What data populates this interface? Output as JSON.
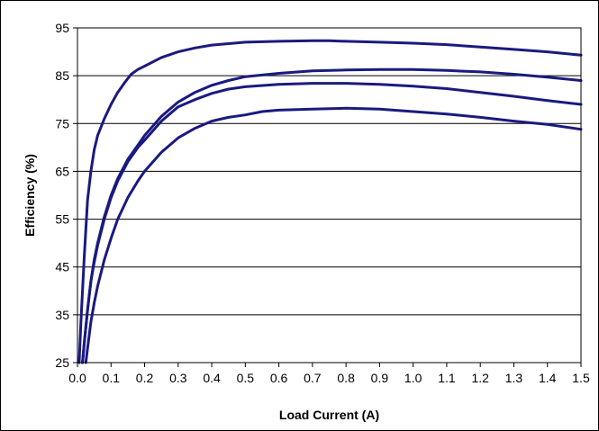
{
  "chart_data": {
    "type": "line",
    "title": "",
    "xlabel": "Load Current (A)",
    "ylabel": "Efficiency (%)",
    "xlim": [
      0,
      1.5
    ],
    "ylim": [
      25,
      95
    ],
    "x_ticks": [
      "0.0",
      "0.1",
      "0.2",
      "0.3",
      "0.4",
      "0.5",
      "0.6",
      "0.7",
      "0.8",
      "0.9",
      "1.0",
      "1.1",
      "1.2",
      "1.3",
      "1.4",
      "1.5"
    ],
    "y_ticks": [
      "25",
      "35",
      "45",
      "55",
      "65",
      "75",
      "85",
      "95"
    ],
    "grid": "horizontal",
    "legend": "none",
    "line_color": "#1a1a80",
    "series": [
      {
        "x": [
          0.005,
          0.01,
          0.02,
          0.03,
          0.04,
          0.05,
          0.06,
          0.08,
          0.1,
          0.12,
          0.14,
          0.16,
          0.18,
          0.2,
          0.25,
          0.3,
          0.35,
          0.4,
          0.45,
          0.5,
          0.55,
          0.6,
          0.7,
          0.75,
          0.8,
          0.9,
          1.0,
          1.1,
          1.2,
          1.3,
          1.4,
          1.5
        ],
        "y": [
          25,
          33,
          47,
          59,
          65,
          69.5,
          72.5,
          76,
          79,
          81.5,
          83.5,
          85.3,
          86.3,
          87,
          88.8,
          90,
          90.8,
          91.4,
          91.7,
          92,
          92.1,
          92.2,
          92.3,
          92.3,
          92.2,
          92,
          91.8,
          91.5,
          91,
          90.5,
          90,
          89.3
        ]
      },
      {
        "x": [
          0.015,
          0.02,
          0.03,
          0.04,
          0.05,
          0.06,
          0.08,
          0.1,
          0.12,
          0.15,
          0.18,
          0.2,
          0.25,
          0.3,
          0.35,
          0.4,
          0.45,
          0.5,
          0.6,
          0.7,
          0.8,
          0.9,
          1.0,
          1.1,
          1.2,
          1.3,
          1.4,
          1.5
        ],
        "y": [
          25,
          29,
          36,
          42,
          46.5,
          50,
          55.5,
          60,
          63.5,
          67.5,
          70.5,
          72.5,
          76.5,
          79.5,
          81.5,
          83,
          84,
          84.8,
          85.5,
          86,
          86.2,
          86.3,
          86.3,
          86.1,
          85.8,
          85.3,
          84.7,
          84
        ]
      },
      {
        "x": [
          0.015,
          0.02,
          0.03,
          0.04,
          0.05,
          0.06,
          0.08,
          0.1,
          0.12,
          0.15,
          0.18,
          0.2,
          0.25,
          0.3,
          0.35,
          0.4,
          0.45,
          0.5,
          0.6,
          0.7,
          0.8,
          0.9,
          1.0,
          1.1,
          1.2,
          1.3,
          1.4,
          1.5
        ],
        "y": [
          25,
          29,
          36,
          42,
          46,
          49.5,
          55,
          59.5,
          63,
          67,
          70,
          71.5,
          75.5,
          78.5,
          80,
          81.3,
          82.2,
          82.7,
          83.2,
          83.4,
          83.4,
          83.2,
          82.8,
          82.3,
          81.5,
          80.7,
          79.8,
          79
        ]
      },
      {
        "x": [
          0.025,
          0.03,
          0.04,
          0.05,
          0.06,
          0.08,
          0.1,
          0.12,
          0.15,
          0.18,
          0.2,
          0.25,
          0.3,
          0.35,
          0.4,
          0.45,
          0.5,
          0.55,
          0.6,
          0.7,
          0.8,
          0.9,
          1.0,
          1.1,
          1.2,
          1.3,
          1.4,
          1.5
        ],
        "y": [
          25,
          28,
          33.5,
          37.5,
          41,
          46.5,
          51,
          55,
          59.5,
          63,
          65,
          69,
          72,
          74,
          75.5,
          76.3,
          76.8,
          77.5,
          77.8,
          78,
          78.2,
          78,
          77.5,
          77,
          76.3,
          75.5,
          74.8,
          73.8
        ]
      }
    ]
  }
}
